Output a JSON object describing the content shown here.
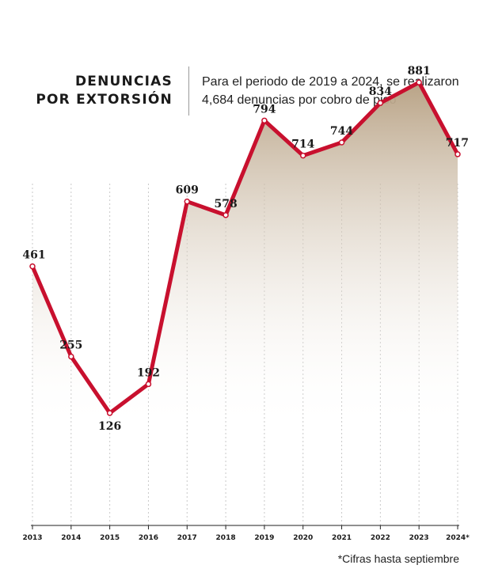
{
  "header": {
    "title_line1": "DENUNCIAS",
    "title_line2": "POR EXTORSIÓN",
    "description": "Para el periodo de 2019 a 2024, se realizaron 4,684 denuncias por cobro de piso"
  },
  "footnote": "*Cifras hasta septiembre",
  "colors": {
    "line": "#c8102e",
    "area_top": "#b9a386",
    "area_bottom": "#ffffff",
    "grid": "#c9c9c9",
    "text": "#1a1a1a"
  },
  "chart_data": {
    "type": "area",
    "categories": [
      "2013",
      "2014",
      "2015",
      "2016",
      "2017",
      "2018",
      "2019",
      "2020",
      "2021",
      "2022",
      "2023",
      "2024*"
    ],
    "values": [
      461,
      255,
      126,
      192,
      609,
      578,
      794,
      714,
      744,
      834,
      881,
      717
    ],
    "ylim": [
      -250,
      950
    ],
    "grid": "vertical-dotted",
    "title": "",
    "xlabel": "",
    "ylabel": ""
  }
}
